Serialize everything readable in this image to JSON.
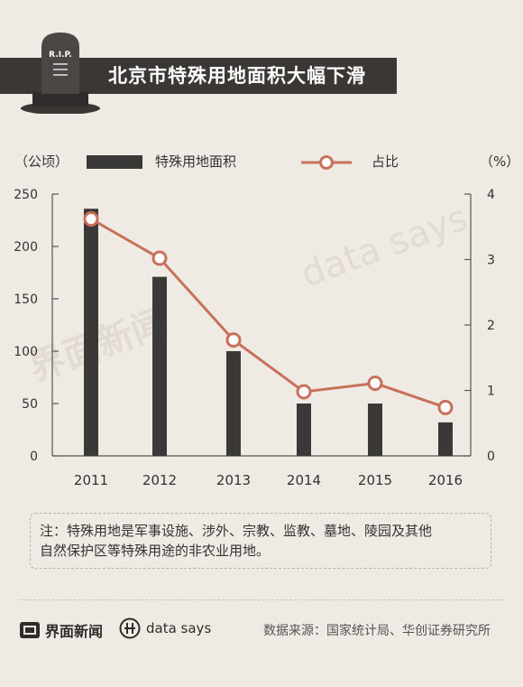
{
  "title": "北京市特殊用地面积大幅下滑",
  "tombstone_text": "R.I.P.",
  "legend": {
    "unit_left": "（公顷）",
    "unit_right": "（%）",
    "bar_label": "特殊用地面积",
    "line_label": "占比"
  },
  "colors": {
    "bar": "#3b3937",
    "line": "#c8705a",
    "header": "#3a3734",
    "background": "#efebe4"
  },
  "chart_data": {
    "type": "bar",
    "categories": [
      "2011",
      "2012",
      "2013",
      "2014",
      "2015",
      "2016"
    ],
    "series": [
      {
        "name": "特殊用地面积",
        "type": "bar",
        "axis": "left",
        "values": [
          236,
          171,
          100,
          50,
          50,
          32
        ]
      },
      {
        "name": "占比",
        "type": "line",
        "axis": "right",
        "values": [
          3.62,
          3.02,
          1.77,
          0.98,
          1.11,
          0.74
        ]
      }
    ],
    "y_left": {
      "ticks": [
        "0",
        "50",
        "100",
        "150",
        "200",
        "250"
      ],
      "ylim": [
        0,
        250
      ]
    },
    "y_right": {
      "ticks": [
        "0",
        "1",
        "2",
        "3",
        "4"
      ],
      "ylim": [
        0,
        4
      ]
    },
    "grid": false,
    "legend_position": "top"
  },
  "note": {
    "line1": "注：特殊用地是军事设施、涉外、宗教、监教、墓地、陵园及其他",
    "line2": "自然保护区等特殊用途的非农业用地。"
  },
  "footer": {
    "brand_jiemian": "界面新闻",
    "brand_datasays": "data says",
    "source": "数据来源：国家统计局、华创证券研究所"
  },
  "watermarks": {
    "jiemian": "界面新闻",
    "datasays": "data says"
  }
}
